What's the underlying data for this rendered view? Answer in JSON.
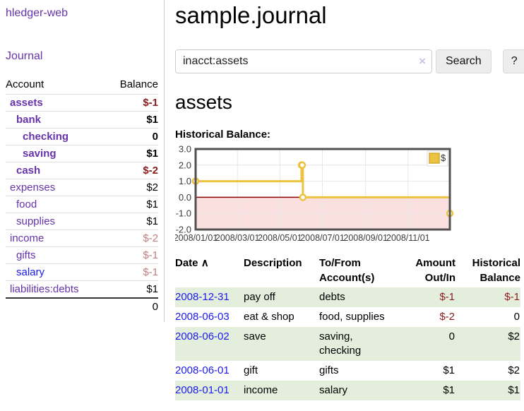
{
  "sidebar": {
    "brand": "hledger-web",
    "nav_journal": "Journal",
    "accounts_table": {
      "headers": {
        "account": "Account",
        "balance": "Balance"
      },
      "rows": [
        {
          "name": "assets",
          "depth": 1,
          "bold": true,
          "balance": "$-1",
          "balance_style": "neg"
        },
        {
          "name": "bank",
          "depth": 2,
          "bold": true,
          "balance": "$1",
          "balance_style": "pos"
        },
        {
          "name": "checking",
          "depth": 3,
          "bold": true,
          "balance": "0",
          "balance_style": "pos"
        },
        {
          "name": "saving",
          "depth": 3,
          "bold": true,
          "balance": "$1",
          "balance_style": "pos"
        },
        {
          "name": "cash",
          "depth": 2,
          "bold": true,
          "balance": "$-2",
          "balance_style": "neg"
        },
        {
          "name": "expenses",
          "depth": 1,
          "bold": false,
          "balance": "$2",
          "balance_style": "pos"
        },
        {
          "name": "food",
          "depth": 2,
          "bold": false,
          "balance": "$1",
          "balance_style": "pos"
        },
        {
          "name": "supplies",
          "depth": 2,
          "bold": false,
          "balance": "$1",
          "balance_style": "pos"
        },
        {
          "name": "income",
          "depth": 1,
          "bold": false,
          "balance": "$-2",
          "balance_style": "neg-soft"
        },
        {
          "name": "gifts",
          "depth": 2,
          "bold": false,
          "balance": "$-1",
          "balance_style": "neg-soft"
        },
        {
          "name": "salary",
          "depth": 2,
          "bold": false,
          "link_blue": true,
          "balance": "$-1",
          "balance_style": "neg-soft"
        },
        {
          "name": "liabilities:debts",
          "depth": 1,
          "bold": false,
          "balance": "$1",
          "balance_style": "pos"
        }
      ],
      "total": "0"
    }
  },
  "header": {
    "title": "sample.journal"
  },
  "search": {
    "value": "inacct:assets",
    "clear_icon": "×",
    "search_button": "Search",
    "help_button": "?"
  },
  "main": {
    "account_heading": "assets",
    "chart_label": "Historical Balance:"
  },
  "chart_data": {
    "type": "line",
    "title": "Historical Balance:",
    "step": true,
    "xrange": [
      "2008-01-01",
      "2008-12-31"
    ],
    "ylim": [
      -2,
      3
    ],
    "yticks": [
      3.0,
      2.0,
      1.0,
      0.0,
      -1.0,
      -2.0
    ],
    "ytick_labels": [
      "3.0",
      "2.0",
      "1.0",
      "0.0",
      "-1.0",
      "-2.0"
    ],
    "xticks": [
      "2008-01-01",
      "2008-03-01",
      "2008-05-01",
      "2008-07-01",
      "2008-09-01",
      "2008-11-01"
    ],
    "xtick_labels": [
      "2008/01/01",
      "2008/03/01",
      "2008/05/01",
      "2008/07/01",
      "2008/09/01",
      "2008/11/01"
    ],
    "series": [
      {
        "name": "$",
        "points": [
          {
            "x": "2008-01-01",
            "y": 1
          },
          {
            "x": "2008-06-01",
            "y": 2
          },
          {
            "x": "2008-06-02",
            "y": 2
          },
          {
            "x": "2008-06-03",
            "y": 0
          },
          {
            "x": "2008-12-31",
            "y": -1
          }
        ]
      }
    ],
    "legend": {
      "position": "top-right",
      "label": "$"
    },
    "grid": true,
    "colors": {
      "series": "#edc240",
      "marker_fill": "#ffffff",
      "negative_fill": "#fbe0e0",
      "zero_line": "#8b0000",
      "border": "#515151",
      "gridline": "#e6e6e6",
      "tick_text": "#3c3c3c"
    }
  },
  "register": {
    "headers": {
      "date": "Date",
      "sort_icon": "∧",
      "description": "Description",
      "tofrom_line1": "To/From",
      "tofrom_line2": "Account(s)",
      "amount_line1": "Amount",
      "amount_line2": "Out/In",
      "balance_line1": "Historical",
      "balance_line2": "Balance"
    },
    "rows": [
      {
        "date": "2008-12-31",
        "description": "pay off",
        "accounts": "debts",
        "amount": "$-1",
        "amount_style": "neg",
        "balance": "$-1",
        "balance_style": "neg"
      },
      {
        "date": "2008-06-03",
        "description": "eat & shop",
        "accounts": "food, supplies",
        "amount": "$-2",
        "amount_style": "neg",
        "balance": "0",
        "balance_style": "pos"
      },
      {
        "date": "2008-06-02",
        "description": "save",
        "accounts": "saving, checking",
        "amount": "0",
        "amount_style": "pos",
        "balance": "$2",
        "balance_style": "pos"
      },
      {
        "date": "2008-06-01",
        "description": "gift",
        "accounts": "gifts",
        "amount": "$1",
        "amount_style": "pos",
        "balance": "$2",
        "balance_style": "pos"
      },
      {
        "date": "2008-01-01",
        "description": "income",
        "accounts": "salary",
        "amount": "$1",
        "amount_style": "pos",
        "balance": "$1",
        "balance_style": "pos"
      }
    ]
  }
}
